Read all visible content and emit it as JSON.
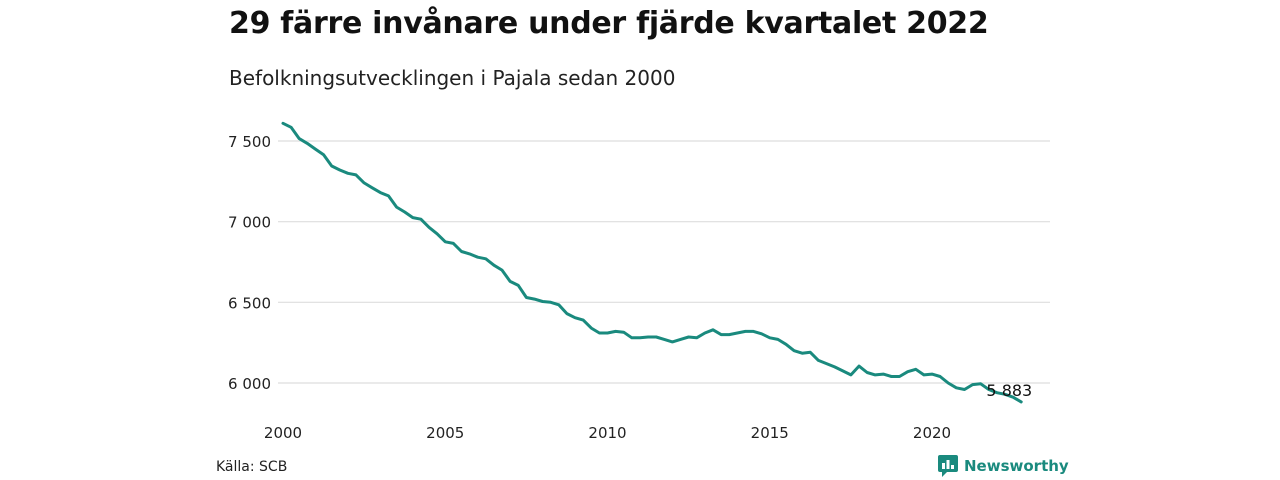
{
  "title": "29 färre invånare under fjärde kvartalet 2022",
  "subtitle": "Befolkningsutvecklingen i Pajala sedan 2000",
  "source": "Källa: SCB",
  "brand": {
    "name": "Newsworthy",
    "icon": "newsworthy-logo-icon",
    "color": "#1a8a7e"
  },
  "chart_data": {
    "type": "line",
    "series": [
      {
        "color": "#1a8a7e",
        "x": [
          2000.0,
          2000.25,
          2000.5,
          2000.75,
          2001.0,
          2001.25,
          2001.5,
          2001.75,
          2002.0,
          2002.25,
          2002.5,
          2002.75,
          2003.0,
          2003.25,
          2003.5,
          2003.75,
          2004.0,
          2004.25,
          2004.5,
          2004.75,
          2005.0,
          2005.25,
          2005.5,
          2005.75,
          2006.0,
          2006.25,
          2006.5,
          2006.75,
          2007.0,
          2007.25,
          2007.5,
          2007.75,
          2008.0,
          2008.25,
          2008.5,
          2008.75,
          2009.0,
          2009.25,
          2009.5,
          2009.75,
          2010.0,
          2010.25,
          2010.5,
          2010.75,
          2011.0,
          2011.25,
          2011.5,
          2011.75,
          2012.0,
          2012.25,
          2012.5,
          2012.75,
          2013.0,
          2013.25,
          2013.5,
          2013.75,
          2014.0,
          2014.25,
          2014.5,
          2014.75,
          2015.0,
          2015.25,
          2015.5,
          2015.75,
          2016.0,
          2016.25,
          2016.5,
          2016.75,
          2017.0,
          2017.25,
          2017.5,
          2017.75,
          2018.0,
          2018.25,
          2018.5,
          2018.75,
          2019.0,
          2019.25,
          2019.5,
          2019.75,
          2020.0,
          2020.25,
          2020.5,
          2020.75,
          2021.0,
          2021.25,
          2021.5,
          2021.75,
          2022.0,
          2022.25,
          2022.5,
          2022.75
        ],
        "values": [
          7610,
          7585,
          7515,
          7485,
          7450,
          7415,
          7345,
          7320,
          7300,
          7290,
          7240,
          7210,
          7180,
          7160,
          7090,
          7060,
          7025,
          7015,
          6965,
          6925,
          6875,
          6865,
          6815,
          6800,
          6780,
          6770,
          6730,
          6700,
          6630,
          6605,
          6530,
          6520,
          6505,
          6500,
          6485,
          6430,
          6405,
          6390,
          6340,
          6310,
          6310,
          6320,
          6315,
          6280,
          6280,
          6285,
          6285,
          6270,
          6255,
          6270,
          6285,
          6280,
          6310,
          6330,
          6300,
          6300,
          6310,
          6320,
          6320,
          6305,
          6280,
          6270,
          6240,
          6200,
          6185,
          6190,
          6140,
          6120,
          6100,
          6075,
          6050,
          6105,
          6065,
          6050,
          6055,
          6040,
          6040,
          6070,
          6085,
          6050,
          6055,
          6040,
          6000,
          5970,
          5960,
          5990,
          5995,
          5960,
          5940,
          5930,
          5912,
          5883
        ]
      }
    ],
    "end_label": "5 883",
    "x_ticks": [
      2000,
      2005,
      2010,
      2015,
      2020
    ],
    "x_tick_labels": [
      "2000",
      "2005",
      "2010",
      "2015",
      "2020"
    ],
    "y_ticks": [
      6000,
      6500,
      7000,
      7500
    ],
    "y_tick_labels": [
      "6 000",
      "6 500",
      "7 000",
      "7 500"
    ],
    "xlim": [
      2000,
      2023.5
    ],
    "ylim": [
      5800,
      7620
    ],
    "grid": true,
    "xlabel": "",
    "ylabel": ""
  }
}
